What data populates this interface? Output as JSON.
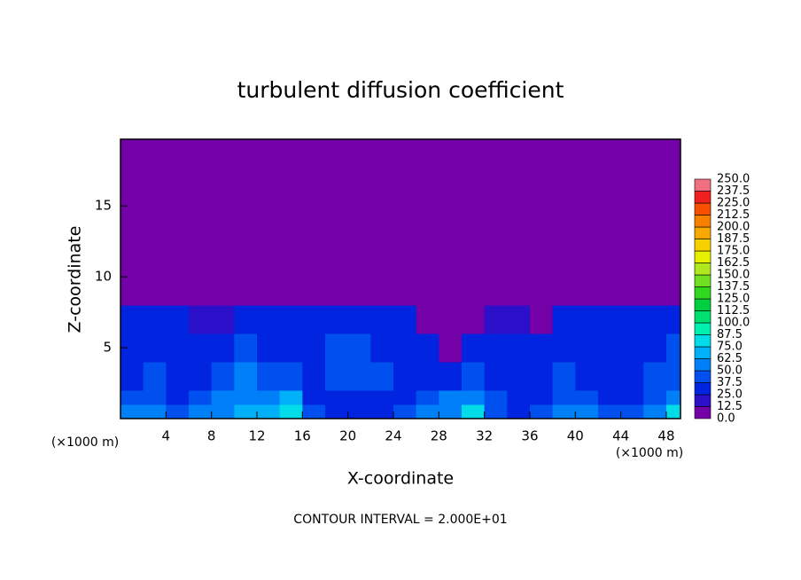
{
  "chart_data": {
    "type": "contour",
    "title": "turbulent diffusion coefficient",
    "x_label": "X-coordinate",
    "y_label": "Z-coordinate",
    "x_unit": "(×1000 m)",
    "y_unit": "(×1000 m)",
    "footer": "CONTOUR INTERVAL = 2.000E+01",
    "xlim": [
      0,
      49.25
    ],
    "ylim": [
      0,
      19.7
    ],
    "xticks": [
      4,
      8,
      12,
      16,
      20,
      24,
      28,
      32,
      36,
      40,
      44,
      48
    ],
    "yticks": [
      5,
      10,
      15
    ],
    "colorbar": {
      "ticks": [
        {
          "value": 0,
          "label": "0.0"
        },
        {
          "value": 12.5,
          "label": "12.5"
        },
        {
          "value": 25,
          "label": "25.0"
        },
        {
          "value": 37.5,
          "label": "37.5"
        },
        {
          "value": 50,
          "label": "50.0"
        },
        {
          "value": 62.5,
          "label": "62.5"
        },
        {
          "value": 75,
          "label": "75.0"
        },
        {
          "value": 87.5,
          "label": "87.5"
        },
        {
          "value": 100,
          "label": "100.0"
        },
        {
          "value": 112.5,
          "label": "112.5"
        },
        {
          "value": 125,
          "label": "125.0"
        },
        {
          "value": 137.5,
          "label": "137.5"
        },
        {
          "value": 150,
          "label": "150.0"
        },
        {
          "value": 162.5,
          "label": "162.5"
        },
        {
          "value": 175,
          "label": "175.0"
        },
        {
          "value": 187.5,
          "label": "187.5"
        },
        {
          "value": 200,
          "label": "200.0"
        },
        {
          "value": 212.5,
          "label": "212.5"
        },
        {
          "value": 225,
          "label": "225.0"
        },
        {
          "value": 237.5,
          "label": "237.5"
        },
        {
          "value": 250,
          "label": "250.0"
        }
      ],
      "colors": [
        "#7400a8",
        "#2a10c8",
        "#0024e0",
        "#0050f0",
        "#0080f8",
        "#00b0f8",
        "#00dce8",
        "#00f0b0",
        "#00e070",
        "#00d040",
        "#30d820",
        "#70e020",
        "#b0e820",
        "#e8f000",
        "#f8d000",
        "#f8a800",
        "#f88000",
        "#f85000",
        "#f02020",
        "#f07080"
      ]
    },
    "field": {
      "x_edges": [
        0,
        2,
        4,
        6,
        8,
        10,
        12,
        14,
        16,
        18,
        20,
        22,
        24,
        26,
        28,
        30,
        32,
        34,
        36,
        38,
        40,
        42,
        44,
        46,
        48,
        49.25
      ],
      "z_edges": [
        0,
        1,
        2,
        4,
        6,
        8,
        19.7
      ],
      "values": [
        [
          50,
          55,
          45,
          50,
          60,
          70,
          65,
          75,
          40,
          35,
          30,
          35,
          40,
          50,
          60,
          75,
          45,
          30,
          40,
          55,
          50,
          45,
          40,
          60,
          80
        ],
        [
          40,
          45,
          35,
          40,
          50,
          60,
          55,
          65,
          30,
          35,
          35,
          35,
          35,
          40,
          50,
          60,
          40,
          30,
          35,
          45,
          40,
          35,
          30,
          45,
          60
        ],
        [
          35,
          40,
          30,
          35,
          45,
          50,
          40,
          45,
          35,
          40,
          40,
          40,
          35,
          35,
          30,
          40,
          35,
          30,
          30,
          40,
          35,
          30,
          30,
          40,
          45
        ],
        [
          30,
          35,
          30,
          30,
          35,
          45,
          35,
          35,
          35,
          40,
          40,
          35,
          30,
          25,
          0,
          30,
          25,
          25,
          25,
          30,
          30,
          30,
          30,
          35,
          40
        ],
        [
          25,
          25,
          25,
          20,
          20,
          25,
          30,
          35,
          30,
          35,
          35,
          30,
          25,
          0,
          0,
          0,
          20,
          20,
          0,
          25,
          25,
          25,
          30,
          30,
          25
        ],
        [
          0,
          0,
          0,
          0,
          0,
          0,
          0,
          0,
          0,
          0,
          0,
          0,
          0,
          0,
          0,
          0,
          0,
          0,
          0,
          0,
          0,
          0,
          0,
          0,
          0
        ]
      ]
    }
  }
}
